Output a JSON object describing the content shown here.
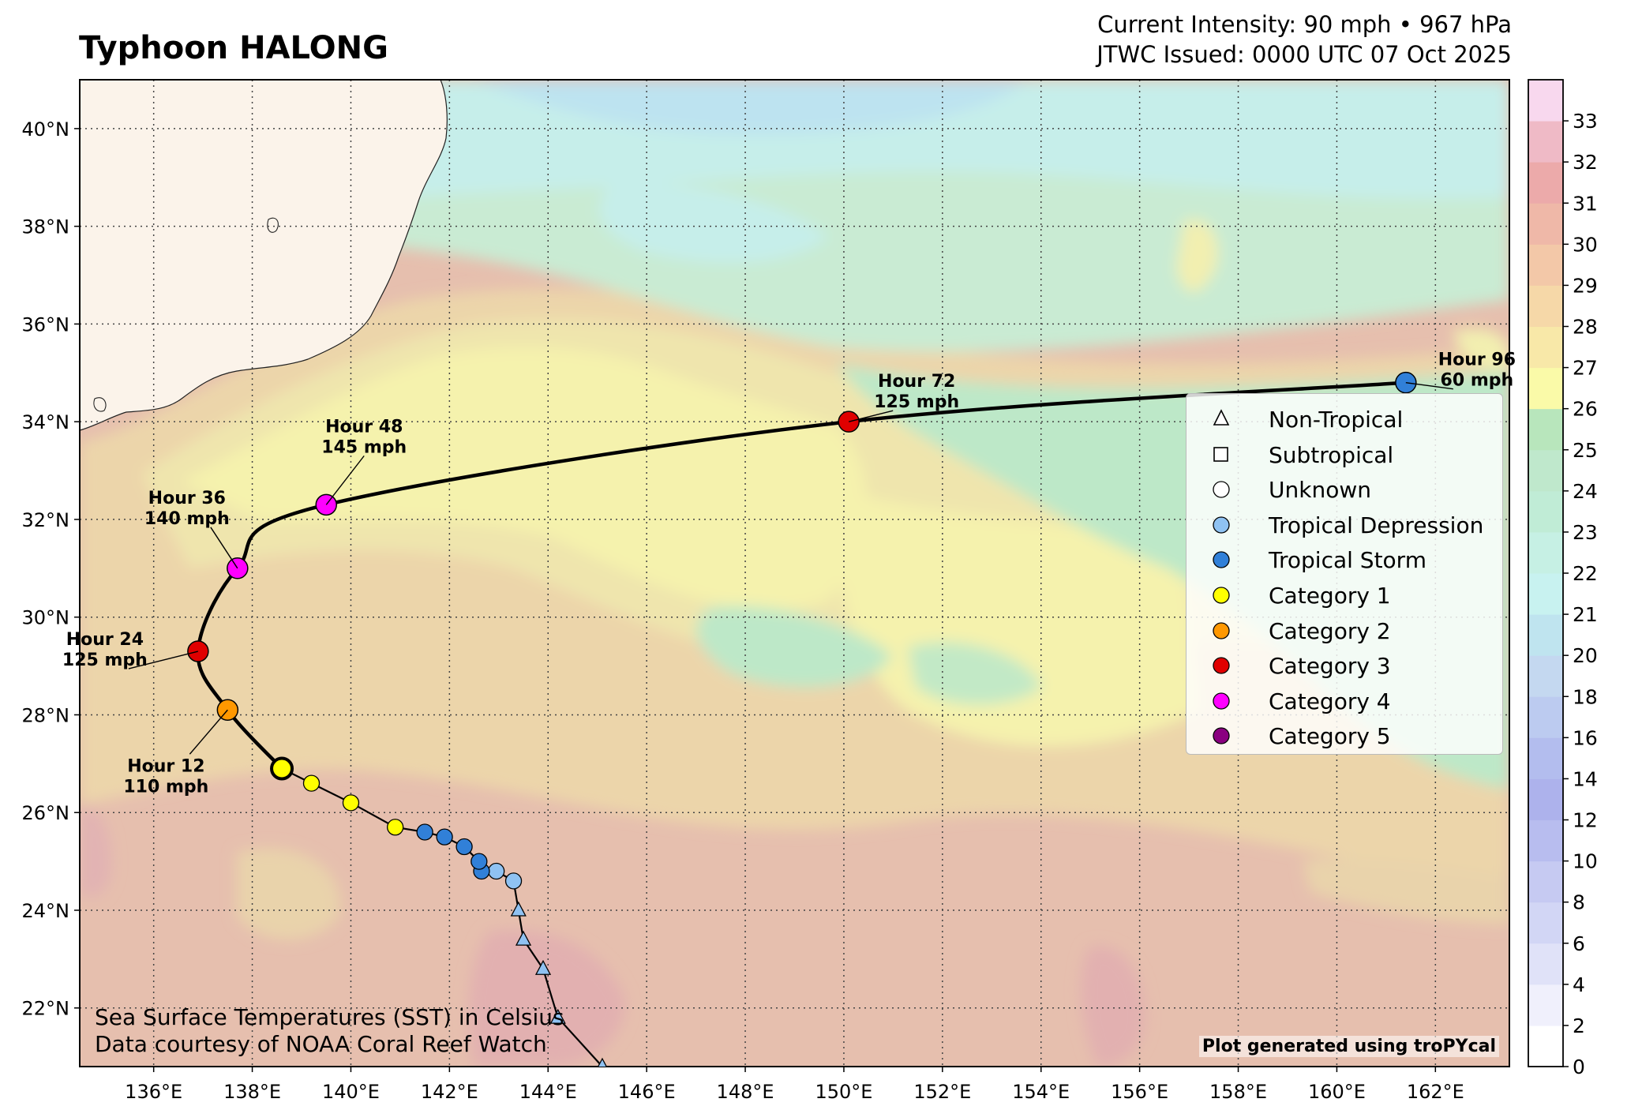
{
  "header": {
    "title": "Typhoon HALONG",
    "intensity": "Current Intensity: 90 mph • 967 hPa",
    "issued": "JTWC Issued: 0000 UTC 07 Oct 2025"
  },
  "map": {
    "lon_range": [
      134.5,
      163.5
    ],
    "lat_range": [
      20.8,
      41.0
    ],
    "lon_ticks": [
      "136°E",
      "138°E",
      "140°E",
      "142°E",
      "144°E",
      "146°E",
      "148°E",
      "150°E",
      "152°E",
      "154°E",
      "156°E",
      "158°E",
      "160°E",
      "162°E"
    ],
    "lon_tick_values": [
      136,
      138,
      140,
      142,
      144,
      146,
      148,
      150,
      152,
      154,
      156,
      158,
      160,
      162
    ],
    "lat_ticks": [
      "22°N",
      "24°N",
      "26°N",
      "28°N",
      "30°N",
      "32°N",
      "34°N",
      "36°N",
      "38°N",
      "40°N"
    ],
    "lat_tick_values": [
      22,
      24,
      26,
      28,
      30,
      32,
      34,
      36,
      38,
      40
    ],
    "grid": "dotted",
    "land_color": "#fbf3ea",
    "base_sst_color": "#e6bfae"
  },
  "past_track": [
    {
      "lon": 145.1,
      "lat": 20.8,
      "type": "Non-Tropical"
    },
    {
      "lon": 144.2,
      "lat": 21.8,
      "type": "Non-Tropical"
    },
    {
      "lon": 143.9,
      "lat": 22.8,
      "type": "Non-Tropical"
    },
    {
      "lon": 143.5,
      "lat": 23.4,
      "type": "Non-Tropical"
    },
    {
      "lon": 143.4,
      "lat": 24.0,
      "type": "Non-Tropical"
    },
    {
      "lon": 143.3,
      "lat": 24.6,
      "type": "Tropical Depression"
    },
    {
      "lon": 142.95,
      "lat": 24.8,
      "type": "Tropical Depression"
    },
    {
      "lon": 142.65,
      "lat": 24.8,
      "type": "Tropical Storm"
    },
    {
      "lon": 142.6,
      "lat": 25.0,
      "type": "Tropical Storm"
    },
    {
      "lon": 142.3,
      "lat": 25.3,
      "type": "Tropical Storm"
    },
    {
      "lon": 141.9,
      "lat": 25.5,
      "type": "Tropical Storm"
    },
    {
      "lon": 141.5,
      "lat": 25.6,
      "type": "Tropical Storm"
    },
    {
      "lon": 140.9,
      "lat": 25.7,
      "type": "Category 1"
    },
    {
      "lon": 140.0,
      "lat": 26.2,
      "type": "Category 1"
    },
    {
      "lon": 139.2,
      "lat": 26.6,
      "type": "Category 1"
    }
  ],
  "current_position": {
    "lon": 138.6,
    "lat": 26.9,
    "type": "Category 1"
  },
  "forecast": [
    {
      "hour": 0,
      "lon": 138.6,
      "lat": 26.9,
      "type": "Category 1"
    },
    {
      "hour": 12,
      "lon": 137.5,
      "lat": 28.1,
      "type": "Category 2",
      "label1": "Hour 12",
      "label2": "110 mph"
    },
    {
      "hour": 24,
      "lon": 136.9,
      "lat": 29.3,
      "type": "Category 3",
      "label1": "Hour 24",
      "label2": "125 mph"
    },
    {
      "hour": 36,
      "lon": 137.7,
      "lat": 31.0,
      "type": "Category 4",
      "label1": "Hour 36",
      "label2": "140 mph"
    },
    {
      "hour": 48,
      "lon": 139.5,
      "lat": 32.3,
      "type": "Category 4",
      "label1": "Hour 48",
      "label2": "145 mph"
    },
    {
      "hour": 72,
      "lon": 150.1,
      "lat": 34.0,
      "type": "Category 3",
      "label1": "Hour 72",
      "label2": "125 mph"
    },
    {
      "hour": 96,
      "lon": 161.4,
      "lat": 34.8,
      "type": "Tropical Storm",
      "label1": "Hour 96",
      "label2": "60 mph"
    }
  ],
  "legend": {
    "items": [
      {
        "label": "Non-Tropical",
        "shape": "triangle",
        "color": "#ffffff"
      },
      {
        "label": "Subtropical",
        "shape": "square",
        "color": "#ffffff"
      },
      {
        "label": "Unknown",
        "shape": "circle",
        "color": "#ffffff"
      },
      {
        "label": "Tropical Depression",
        "shape": "circle",
        "color": "#8fc2f2"
      },
      {
        "label": "Tropical Storm",
        "shape": "circle",
        "color": "#3180d8"
      },
      {
        "label": "Category 1",
        "shape": "circle",
        "color": "#ffff00"
      },
      {
        "label": "Category 2",
        "shape": "circle",
        "color": "#ff9800"
      },
      {
        "label": "Category 3",
        "shape": "circle",
        "color": "#e00000"
      },
      {
        "label": "Category 4",
        "shape": "circle",
        "color": "#ff00ff"
      },
      {
        "label": "Category 5",
        "shape": "circle",
        "color": "#8a0080"
      }
    ]
  },
  "colorbar": {
    "tick_labels": [
      "0",
      "2",
      "4",
      "6",
      "8",
      "10",
      "12",
      "14",
      "16",
      "18",
      "20",
      "21",
      "22",
      "23",
      "24",
      "25",
      "26",
      "27",
      "28",
      "29",
      "30",
      "31",
      "32",
      "33"
    ],
    "colors": [
      "#ffffff",
      "#f0f0fc",
      "#e0e2f8",
      "#d2d6f5",
      "#c6caf2",
      "#b8bdef",
      "#adb2ec",
      "#b3bdee",
      "#bccbf0",
      "#c4d8f0",
      "#bfe4ef",
      "#c8f2f0",
      "#c6f0e4",
      "#c0ecd6",
      "#bfe8cc",
      "#b8e6bc",
      "#fafaa8",
      "#f8e8a8",
      "#f6d8a8",
      "#f3c8a8",
      "#efb8a8",
      "#ecaaaa",
      "#efbac6",
      "#f8d8ee"
    ]
  },
  "credits": {
    "line1": "Sea Surface Temperatures (SST) in Celsius",
    "line2": "Data courtesy of NOAA Coral Reef Watch",
    "tropycal": "Plot generated using troPYcal"
  }
}
